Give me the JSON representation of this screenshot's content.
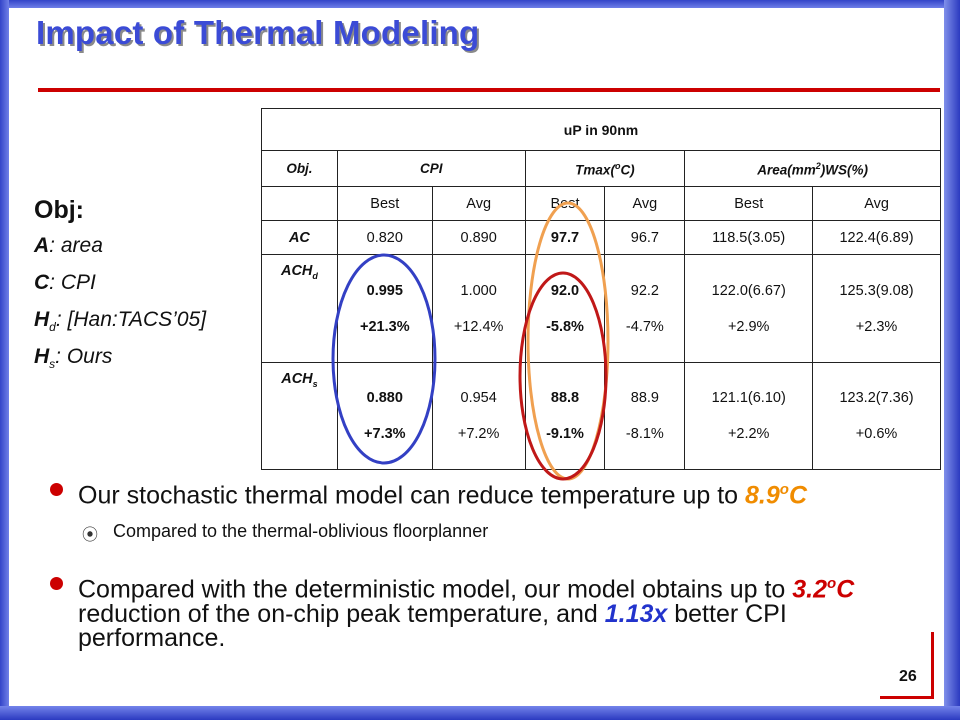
{
  "slide": {
    "title": "Impact of Thermal Modeling",
    "page_number": "26"
  },
  "obj": {
    "heading": "Obj:",
    "lines": [
      {
        "key": "A",
        "sub": "",
        "text": ": area"
      },
      {
        "key": "C",
        "sub": "",
        "text": ": CPI"
      },
      {
        "key": "H",
        "sub": "d",
        "text": ": [Han:TACS’05]"
      },
      {
        "key": "H",
        "sub": "s",
        "text": ": Ours"
      }
    ]
  },
  "table": {
    "caption": "uP in 90nm",
    "headers": {
      "obj": "Obj.",
      "cpi": "CPI",
      "tmax_pre": "Tmax(",
      "tmax_sup": "o",
      "tmax_post": "C)",
      "area_pre": "Area(mm",
      "area_sup": "2",
      "area_post": ")WS(%)"
    },
    "subheaders": [
      "Best",
      "Avg",
      "Best",
      "Avg",
      "Best",
      "Avg"
    ],
    "rows": [
      {
        "name": "AC",
        "sub": "",
        "cells": [
          {
            "v": "0.820",
            "d": ""
          },
          {
            "v": "0.890",
            "d": ""
          },
          {
            "v": "97.7",
            "d": ""
          },
          {
            "v": "96.7",
            "d": ""
          },
          {
            "v": "118.5(3.05)",
            "d": ""
          },
          {
            "v": "122.4(6.89)",
            "d": ""
          }
        ]
      },
      {
        "name": "ACH",
        "sub": "d",
        "cells": [
          {
            "v": "0.995",
            "d": "+21.3%"
          },
          {
            "v": "1.000",
            "d": "+12.4%"
          },
          {
            "v": "92.0",
            "d": "-5.8%"
          },
          {
            "v": "92.2",
            "d": "-4.7%"
          },
          {
            "v": "122.0(6.67)",
            "d": "+2.9%"
          },
          {
            "v": "125.3(9.08)",
            "d": "+2.3%"
          }
        ]
      },
      {
        "name": "ACH",
        "sub": "s",
        "cells": [
          {
            "v": "0.880",
            "d": "+7.3%"
          },
          {
            "v": "0.954",
            "d": "+7.2%"
          },
          {
            "v": "88.8",
            "d": "-9.1%"
          },
          {
            "v": "88.9",
            "d": "-8.1%"
          },
          {
            "v": "121.1(6.10)",
            "d": "+2.2%"
          },
          {
            "v": "123.2(7.36)",
            "d": "+0.6%"
          }
        ]
      }
    ]
  },
  "bullets": {
    "b1_text": "Our stochastic thermal model can reduce temperature up to ",
    "b1_val": "8.9",
    "b1_sup": "o",
    "b1_unit": "C",
    "sub1_icon": "circled-dot-icon",
    "sub1_text": "Compared to the thermal-oblivious floorplanner",
    "b2_pre": "Compared with the deterministic model, our model obtains up to ",
    "b2_val1": "3.2",
    "b2_sup": "o",
    "b2_unit": "C",
    "b2_mid": " reduction of the on-chip peak temperature, and ",
    "b2_val2": "1.13x",
    "b2_post": " better CPI performance."
  },
  "colors": {
    "title_blue": "#3b4bd6",
    "rule_red": "#cc0000",
    "highlight_orange": "#f08c00",
    "highlight_blue": "#2233cc",
    "oval_blue": "#3340c4",
    "oval_red": "#c01818",
    "oval_orange": "#f0a050"
  }
}
